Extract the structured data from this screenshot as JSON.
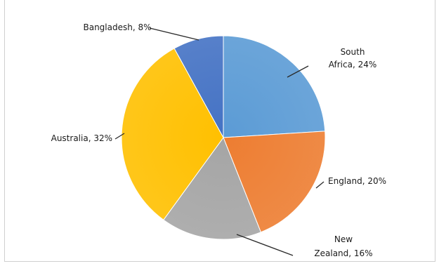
{
  "chart_data": {
    "type": "pie",
    "start_angle_deg": 0,
    "direction": "clockwise",
    "slices": [
      {
        "category": "South Africa",
        "value": 24,
        "label_lines": [
          "South",
          "Africa, 24%"
        ],
        "color": "#5b9bd5"
      },
      {
        "category": "England",
        "value": 20,
        "label_lines": [
          "England, 20%"
        ],
        "color": "#ed7d31"
      },
      {
        "category": "New Zealand",
        "value": 16,
        "label_lines": [
          "New",
          "Zealand, 16%"
        ],
        "color": "#a5a5a5"
      },
      {
        "category": "Australia",
        "value": 32,
        "label_lines": [
          "Australia, 32%"
        ],
        "color": "#ffc000"
      },
      {
        "category": "Bangladesh",
        "value": 8,
        "label_lines": [
          "Bangladesh, 8%"
        ],
        "color": "#4472c4"
      }
    ]
  }
}
